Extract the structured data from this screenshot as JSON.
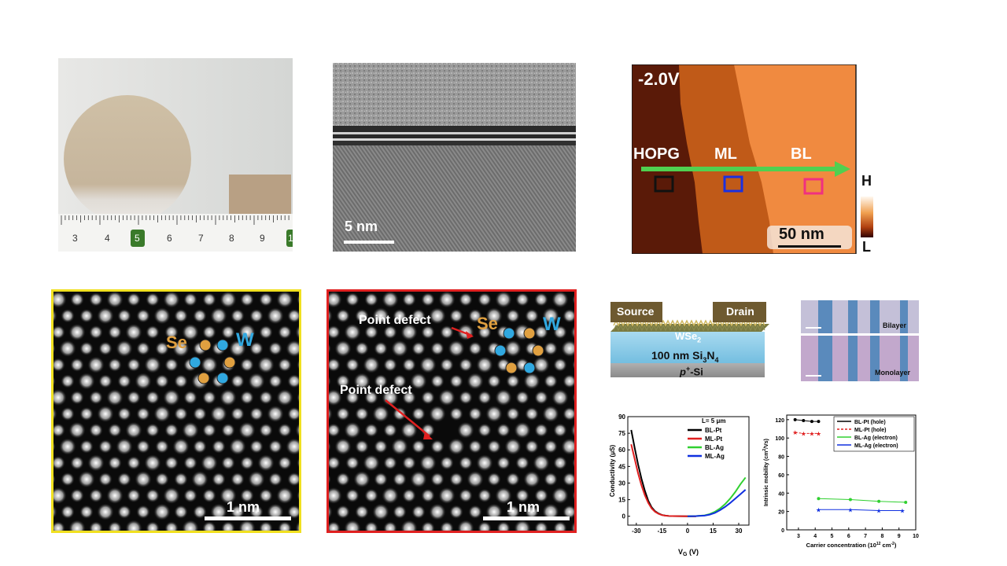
{
  "panels": {
    "wafer": {
      "ruler_ticks": [
        "3",
        "4",
        "5",
        "6",
        "7",
        "8",
        "9",
        "1"
      ]
    },
    "tem": {
      "scale_label": "5 nm"
    },
    "stm": {
      "voltage": "-2.0V",
      "regions": [
        "HOPG",
        "ML",
        "BL"
      ],
      "colorbar_high": "H",
      "colorbar_low": "L",
      "scale_label": "50 nm"
    },
    "stem1": {
      "atom_labels": [
        "Se",
        "W"
      ],
      "scale_label": "1 nm"
    },
    "stem2": {
      "atom_labels": [
        "Se",
        "W"
      ],
      "defect_label_1": "Point defect",
      "defect_label_2": "Point defect",
      "scale_label": "1 nm"
    },
    "device": {
      "source": "Source",
      "drain": "Drain",
      "channel": "WSe",
      "channel_sub": "2",
      "dielectric": "100 nm Si",
      "dielectric_sub1": "3",
      "dielectric_n": "N",
      "dielectric_sub2": "4",
      "substrate_pre": "p",
      "substrate_sup": "+",
      "substrate_post": "-Si"
    },
    "optical": {
      "top_label": "Bilayer",
      "bottom_label": "Monolayer"
    }
  },
  "colors": {
    "stem1_border": "#f0e020",
    "stem2_border": "#e02020",
    "se_atom": "#e0a040",
    "w_atom": "#30a8e0",
    "arrow_green": "#50d050"
  },
  "chart_data": [
    {
      "type": "line",
      "title": "",
      "annotation": "L= 5 μm",
      "xlabel": "V_G (V)",
      "ylabel": "Conductivity (μS)",
      "xlim": [
        -35,
        36
      ],
      "ylim": [
        -8,
        90
      ],
      "xticks": [
        -30,
        -15,
        0,
        15,
        30
      ],
      "yticks": [
        0,
        15,
        30,
        45,
        60,
        75,
        90
      ],
      "series": [
        {
          "name": "BL-Pt",
          "color": "#000000",
          "x": [
            -33,
            -31,
            -29,
            -27,
            -25,
            -23,
            -21,
            -19,
            -17,
            -15,
            -13,
            -11,
            -9,
            -5,
            0,
            5
          ],
          "y": [
            78,
            62,
            47,
            34,
            23,
            14,
            8,
            4.5,
            2.5,
            1.2,
            0.6,
            0.3,
            0.2,
            0.1,
            0,
            0
          ]
        },
        {
          "name": "ML-Pt",
          "color": "#e02020",
          "x": [
            -33,
            -31,
            -29,
            -27,
            -25,
            -23,
            -21,
            -19,
            -17,
            -15,
            -13,
            -11,
            -9,
            -5,
            0,
            5
          ],
          "y": [
            65,
            52,
            39,
            28,
            19,
            12,
            7,
            4,
            2.2,
            1.1,
            0.5,
            0.3,
            0.2,
            0.1,
            0,
            0
          ]
        },
        {
          "name": "BL-Ag",
          "color": "#30d030",
          "x": [
            0,
            5,
            10,
            13,
            16,
            19,
            22,
            25,
            28,
            31,
            34
          ],
          "y": [
            0,
            0.2,
            0.8,
            2,
            4,
            7,
            11,
            16,
            22,
            29,
            35
          ]
        },
        {
          "name": "ML-Ag",
          "color": "#1030e0",
          "x": [
            0,
            5,
            10,
            13,
            16,
            19,
            22,
            25,
            28,
            31,
            34
          ],
          "y": [
            0,
            0.2,
            0.6,
            1.5,
            3,
            5.5,
            8.5,
            12,
            16,
            20,
            24
          ]
        }
      ]
    },
    {
      "type": "line",
      "title": "",
      "xlabel": "Carrier concentration (10^12 cm^-2)",
      "ylabel": "Intrinsic mobility (cm^2/Vs)",
      "xlim": [
        2.3,
        10
      ],
      "ylim": [
        0,
        125
      ],
      "xticks": [
        3,
        4,
        5,
        6,
        7,
        8,
        9,
        10
      ],
      "yticks": [
        0,
        20,
        40,
        60,
        80,
        100,
        120
      ],
      "legend": "top-right",
      "series": [
        {
          "name": "BL-Pt (hole)",
          "color": "#000000",
          "marker": "circle",
          "x": [
            2.8,
            3.3,
            3.8,
            4.2
          ],
          "y": [
            120,
            119,
            118,
            118
          ]
        },
        {
          "name": "ML-Pt (hole)",
          "color": "#e02020",
          "marker": "star",
          "dashed": true,
          "x": [
            2.8,
            3.3,
            3.8,
            4.2
          ],
          "y": [
            106,
            105,
            105,
            105
          ]
        },
        {
          "name": "BL-Ag (electron)",
          "color": "#30d030",
          "marker": "circle",
          "x": [
            4.2,
            6.1,
            7.8,
            9.4
          ],
          "y": [
            34,
            33,
            31,
            30
          ]
        },
        {
          "name": "ML-Ag (electron)",
          "color": "#1030e0",
          "marker": "star",
          "x": [
            4.2,
            6.1,
            7.8,
            9.2
          ],
          "y": [
            22,
            22,
            21,
            21
          ]
        }
      ]
    }
  ]
}
